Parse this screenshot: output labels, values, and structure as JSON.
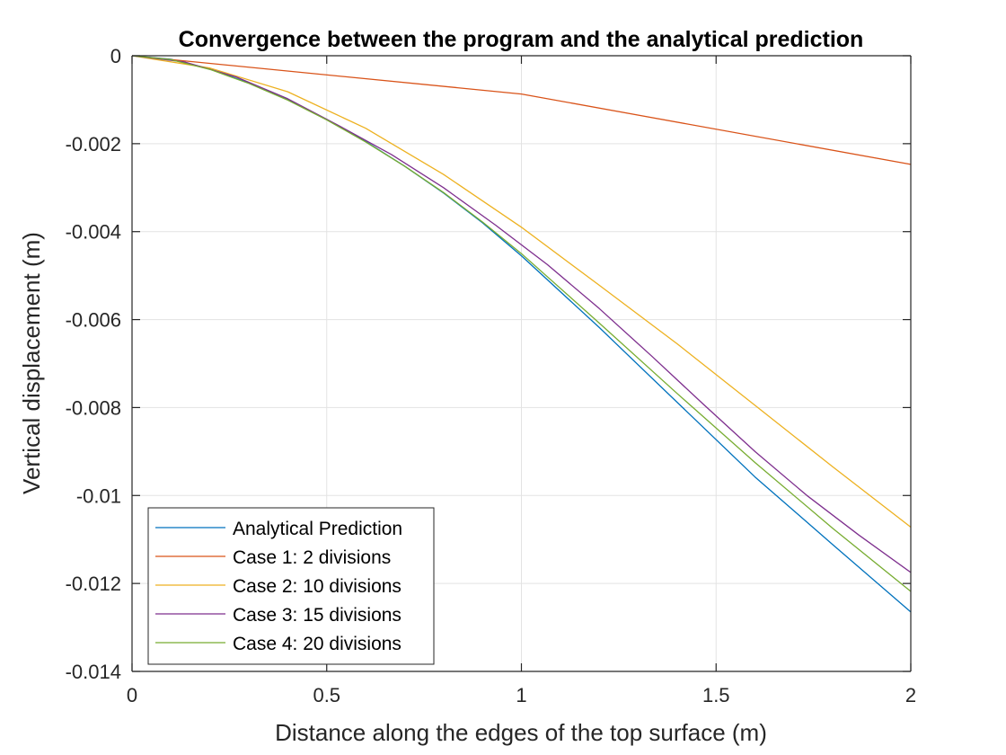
{
  "chart_data": {
    "type": "line",
    "title": "Convergence between the program and the analytical prediction",
    "xlabel": "Distance along the edges of the top surface (m)",
    "ylabel": "Vertical displacement (m)",
    "xlim": [
      0,
      2
    ],
    "ylim": [
      -0.014,
      0
    ],
    "xticks": [
      0,
      0.5,
      1,
      1.5,
      2
    ],
    "xtick_labels": [
      "0",
      "0.5",
      "1",
      "1.5",
      "2"
    ],
    "yticks": [
      0,
      -0.002,
      -0.004,
      -0.006,
      -0.008,
      -0.01,
      -0.012,
      -0.014
    ],
    "ytick_labels": [
      "0",
      "-0.002",
      "-0.004",
      "-0.006",
      "-0.008",
      "-0.01",
      "-0.012",
      "-0.014"
    ],
    "grid": true,
    "legend_position": "bottom-left",
    "series": [
      {
        "name": "Analytical Prediction",
        "color": "#0072BD",
        "x": [
          0,
          0.1,
          0.2,
          0.3,
          0.4,
          0.5,
          0.6,
          0.7,
          0.8,
          0.9,
          1.0,
          1.2,
          1.4,
          1.6,
          1.8,
          2.0
        ],
        "y": [
          0,
          -8e-05,
          -0.0003,
          -0.00062,
          -0.001,
          -0.00145,
          -0.00195,
          -0.00251,
          -0.00312,
          -0.0038,
          -0.00455,
          -0.00618,
          -0.00788,
          -0.00958,
          -0.01112,
          -0.01265
        ]
      },
      {
        "name": "Case 1: 2 divisions",
        "color": "#D95319",
        "x": [
          0,
          1,
          2
        ],
        "y": [
          0,
          -0.00087,
          -0.00247
        ]
      },
      {
        "name": "Case 2: 10 divisions",
        "color": "#EDB120",
        "x": [
          0,
          0.2,
          0.4,
          0.6,
          0.8,
          1.0,
          1.2,
          1.4,
          1.6,
          1.8,
          2.0
        ],
        "y": [
          0,
          -0.00028,
          -0.00082,
          -0.00165,
          -0.0027,
          -0.0039,
          -0.00522,
          -0.00655,
          -0.00795,
          -0.00935,
          -0.01072
        ]
      },
      {
        "name": "Case 3: 15 divisions",
        "color": "#7E2F8E",
        "x": [
          0,
          0.1333,
          0.2667,
          0.4,
          0.5333,
          0.6667,
          0.8,
          0.9333,
          1.0667,
          1.2,
          1.3333,
          1.4667,
          1.6,
          1.7333,
          1.8667,
          2.0
        ],
        "y": [
          0,
          -0.00014,
          -0.00048,
          -0.00098,
          -0.0016,
          -0.00225,
          -0.003,
          -0.00385,
          -0.00475,
          -0.00575,
          -0.00682,
          -0.00792,
          -0.009,
          -0.01,
          -0.0109,
          -0.01175
        ]
      },
      {
        "name": "Case 4: 20 divisions",
        "color": "#77AC30",
        "x": [
          0,
          0.1,
          0.2,
          0.3,
          0.4,
          0.5,
          0.6,
          0.7,
          0.8,
          0.9,
          1.0,
          1.2,
          1.4,
          1.6,
          1.8,
          2.0
        ],
        "y": [
          0,
          -9e-05,
          -0.00031,
          -0.00063,
          -0.00101,
          -0.00146,
          -0.00196,
          -0.00251,
          -0.00311,
          -0.00378,
          -0.0045,
          -0.00608,
          -0.00768,
          -0.00925,
          -0.01075,
          -0.01218
        ]
      }
    ]
  }
}
